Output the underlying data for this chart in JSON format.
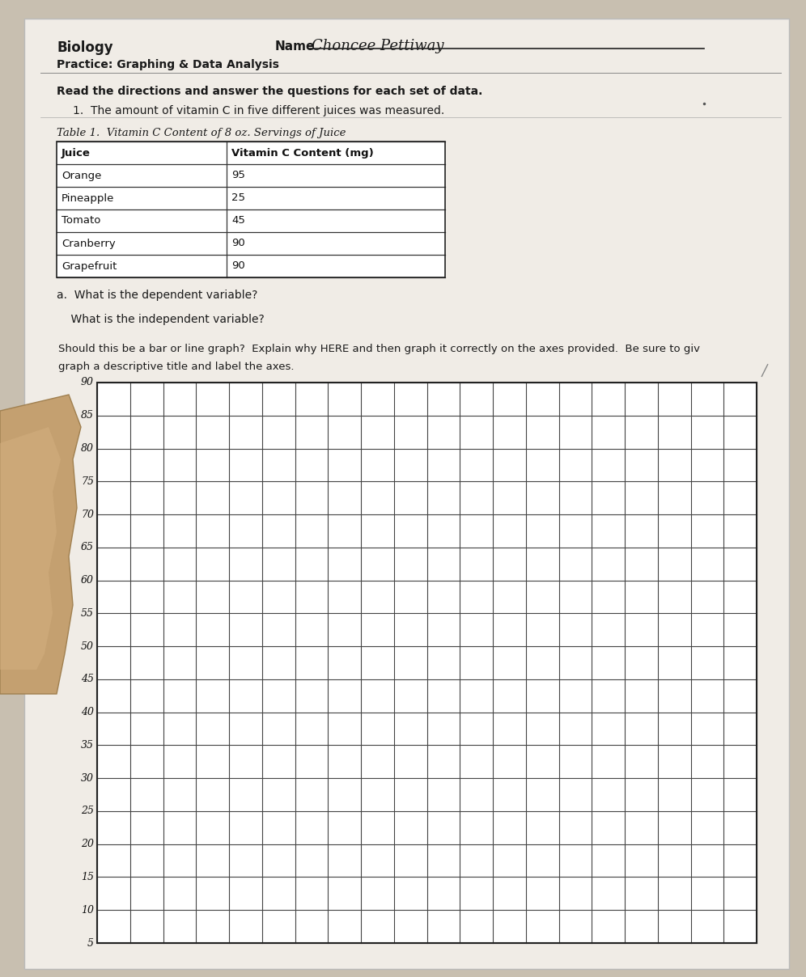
{
  "bg_color": "#c8bfb0",
  "paper_color": "#f0ece6",
  "paper_shadow": "#a09080",
  "title_left": "Biology",
  "title_sub": "Practice: Graphing & Data Analysis",
  "name_label": "Name",
  "name_value": "Choncee Pettiway",
  "instruction_bold": "Read the directions and answer the questions for each set of data.",
  "instruction_1": "1.  The amount of vitamin C in five different juices was measured.",
  "table_title": "Table 1.  Vitamin C Content of 8 oz. Servings of Juice",
  "table_headers": [
    "Juice",
    "Vitamin C Content (mg)"
  ],
  "table_data": [
    [
      "Orange",
      "95"
    ],
    [
      "Pineapple",
      "25"
    ],
    [
      "Tomato",
      "45"
    ],
    [
      "Cranberry",
      "90"
    ],
    [
      "Grapefruit",
      "90"
    ]
  ],
  "question_a": "a.  What is the dependent variable?",
  "question_b": "    What is the independent variable?",
  "question_c": "    Should this be a bar or line graph?  Explain why HERE and then graph it correctly on the axes provided.  Be sure to giv",
  "question_c2": "    graph a descriptive title and label the axes.",
  "grid_yticks": [
    5,
    10,
    15,
    20,
    25,
    30,
    35,
    40,
    45,
    50,
    55,
    60,
    65,
    70,
    75,
    80,
    85,
    90
  ],
  "grid_color": "#444444",
  "hand_color": "#c4a882",
  "line_color": "#555555"
}
